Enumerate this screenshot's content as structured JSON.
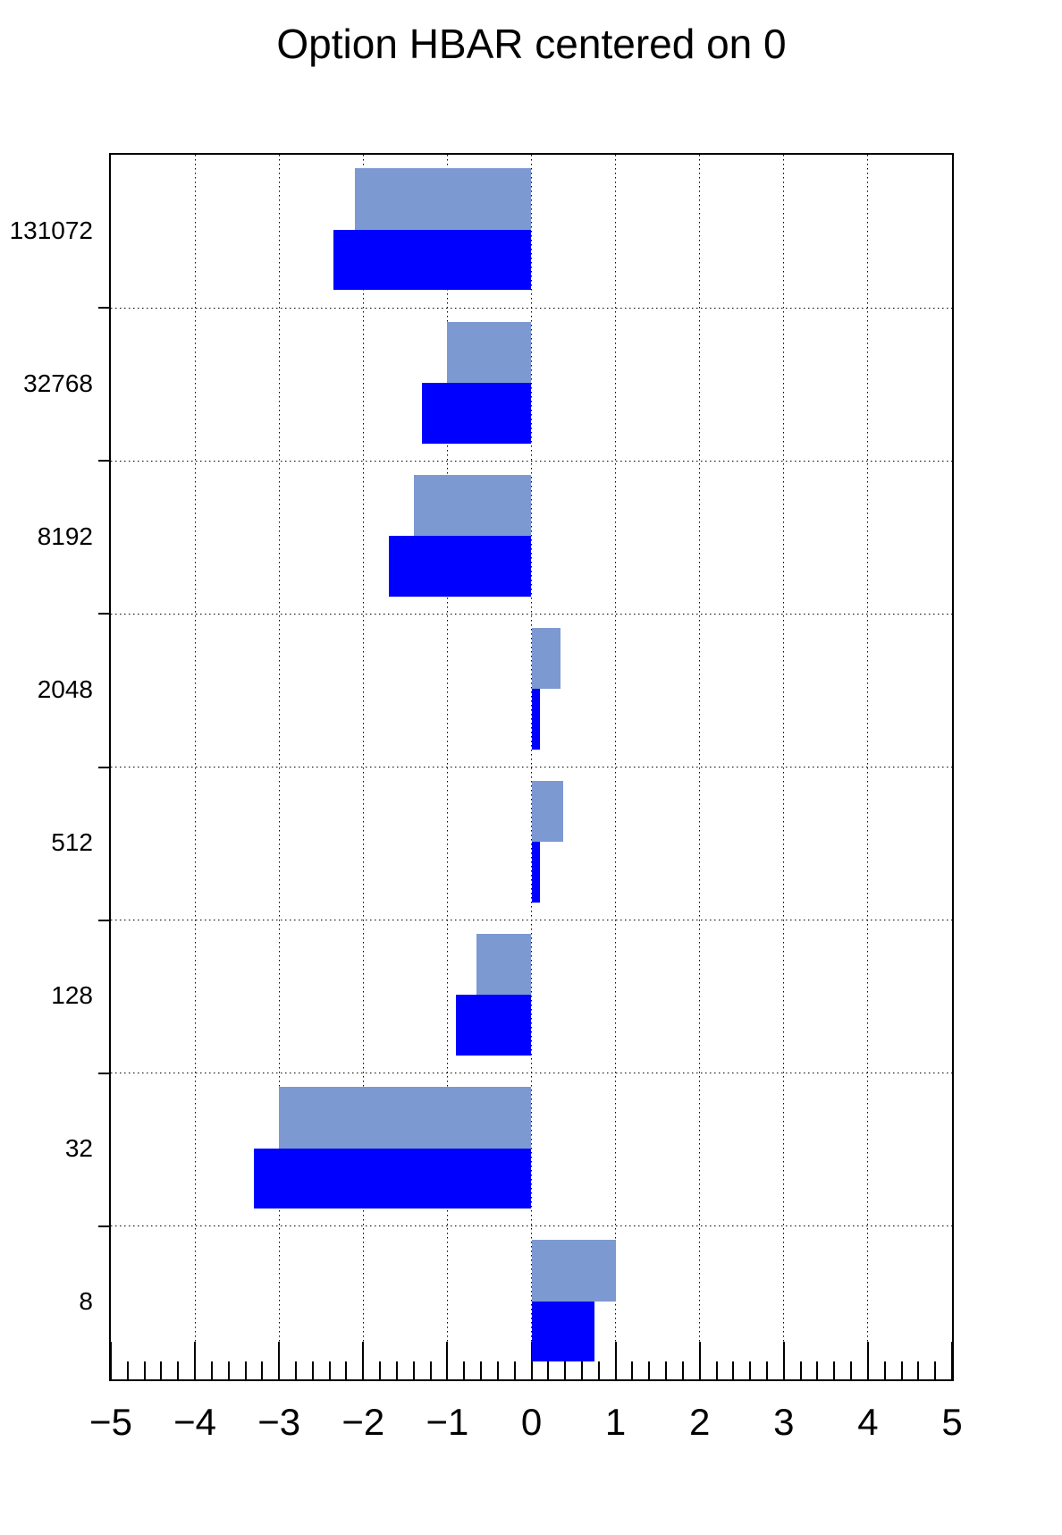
{
  "title": "Option HBAR centered on 0",
  "chart_data": {
    "type": "bar",
    "orientation": "horizontal",
    "title": "Option HBAR centered on 0",
    "categories": [
      "131072",
      "32768",
      "8192",
      "2048",
      "512",
      "128",
      "32",
      "8"
    ],
    "series": [
      {
        "name": "light-blue-bars",
        "color": "#7d99d1",
        "values": [
          -2.1,
          -1.0,
          -1.4,
          0.35,
          0.38,
          -0.65,
          -3.0,
          1.0
        ]
      },
      {
        "name": "blue-bars",
        "color": "#0000ff",
        "values": [
          -2.35,
          -1.3,
          -1.7,
          0.1,
          0.1,
          -0.9,
          -3.3,
          0.75
        ]
      }
    ],
    "xlim": [
      -5,
      5
    ],
    "x_ticks": [
      -5,
      -4,
      -3,
      -2,
      -1,
      0,
      1,
      2,
      3,
      4,
      5
    ],
    "x_tick_labels": [
      "−5",
      "−4",
      "−3",
      "−2",
      "−1",
      "0",
      "1",
      "2",
      "3",
      "4",
      "5"
    ],
    "minor_tick_step": 0.2,
    "grid": "dotted",
    "legend": "none",
    "frame_color": "#000000",
    "background_color": "#ffffff"
  }
}
